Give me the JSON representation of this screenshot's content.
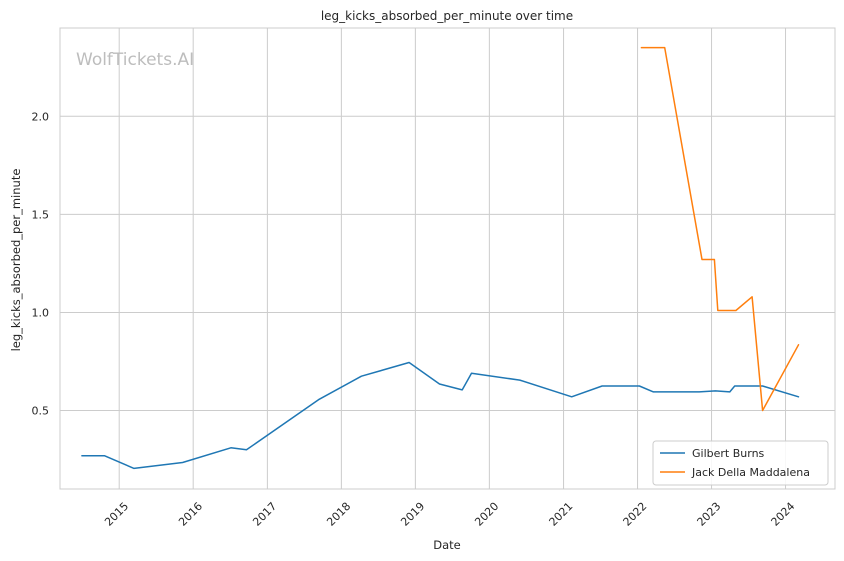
{
  "chart_data": {
    "type": "line",
    "title": "leg_kicks_absorbed_per_minute over time",
    "xlabel": "Date",
    "ylabel": "leg_kicks_absorbed_per_minute",
    "watermark": "WolfTickets.AI",
    "x_ticks": [
      "2015",
      "2016",
      "2017",
      "2018",
      "2019",
      "2020",
      "2021",
      "2022",
      "2023",
      "2024"
    ],
    "y_ticks": [
      "0.5",
      "1.0",
      "1.5",
      "2.0"
    ],
    "xlim": [
      "2014-03-15",
      "2024-09-01"
    ],
    "ylim": [
      0.1,
      2.45
    ],
    "grid": true,
    "legend_position": "bottom-right",
    "series": [
      {
        "name": "Gilbert Burns",
        "color": "#1f77b4",
        "points": [
          [
            "2014-07-01",
            0.27
          ],
          [
            "2014-10-20",
            0.27
          ],
          [
            "2015-03-15",
            0.205
          ],
          [
            "2015-11-10",
            0.235
          ],
          [
            "2016-07-05",
            0.31
          ],
          [
            "2016-09-20",
            0.3
          ],
          [
            "2017-09-10",
            0.555
          ],
          [
            "2018-04-10",
            0.675
          ],
          [
            "2018-12-01",
            0.745
          ],
          [
            "2019-04-30",
            0.635
          ],
          [
            "2019-08-20",
            0.605
          ],
          [
            "2019-10-05",
            0.69
          ],
          [
            "2020-05-30",
            0.655
          ],
          [
            "2021-02-10",
            0.57
          ],
          [
            "2021-07-10",
            0.625
          ],
          [
            "2022-01-10",
            0.625
          ],
          [
            "2022-03-20",
            0.595
          ],
          [
            "2022-11-01",
            0.595
          ],
          [
            "2023-01-20",
            0.6
          ],
          [
            "2023-04-01",
            0.595
          ],
          [
            "2023-04-25",
            0.625
          ],
          [
            "2023-09-10",
            0.625
          ],
          [
            "2024-03-05",
            0.57
          ]
        ]
      },
      {
        "name": "Jack Della Maddalena",
        "color": "#ff7f0e",
        "points": [
          [
            "2022-01-20",
            2.35
          ],
          [
            "2022-05-15",
            2.35
          ],
          [
            "2022-11-15",
            1.27
          ],
          [
            "2023-01-15",
            1.27
          ],
          [
            "2023-02-01",
            1.01
          ],
          [
            "2023-05-01",
            1.01
          ],
          [
            "2023-07-20",
            1.08
          ],
          [
            "2023-09-10",
            0.5
          ],
          [
            "2024-03-05",
            0.835
          ]
        ]
      }
    ]
  }
}
